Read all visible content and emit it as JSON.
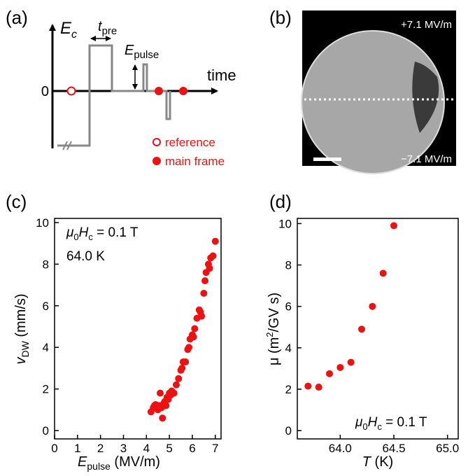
{
  "panel_a": {
    "panel": "(a)",
    "y_axis": [
      "E",
      "c"
    ],
    "t_pre": [
      "t",
      "pre"
    ],
    "e_pulse": [
      "E",
      "pulse"
    ],
    "time": "time",
    "zero": "0",
    "legend": [
      "reference",
      "main frame"
    ]
  },
  "panel_b": {
    "panel": "(b)",
    "top_field": "+7.1 MV/m",
    "bottom_field": "−7.1 MV/m"
  },
  "chart_data": [
    {
      "type": "scatter",
      "panel": "(c)",
      "xlabel": [
        "E",
        "pulse",
        " (MV/m)"
      ],
      "ylabel": [
        "v",
        "DW",
        " (mm/s)"
      ],
      "annotation": [
        "μ",
        "0",
        "H",
        "c",
        " = 0.1 T"
      ],
      "annotation2": "64.0 K",
      "color": "#ee1111",
      "xlim": [
        0,
        7.25
      ],
      "ylim": [
        -0.4,
        10.2
      ],
      "xticks": [
        0,
        1,
        2,
        3,
        4,
        5,
        6,
        7
      ],
      "yticks": [
        0,
        2,
        4,
        6,
        8,
        10
      ],
      "x": [
        4.2,
        4.3,
        4.35,
        4.4,
        4.5,
        4.55,
        4.6,
        4.65,
        4.7,
        4.75,
        4.8,
        4.85,
        4.9,
        4.95,
        5.0,
        5.05,
        5.1,
        5.2,
        5.3,
        5.4,
        5.5,
        5.55,
        5.6,
        5.7,
        5.8,
        5.85,
        5.9,
        6.0,
        6.05,
        6.1,
        6.2,
        6.3,
        6.35,
        6.4,
        6.5,
        6.55,
        6.6,
        6.7,
        6.75,
        6.8,
        6.9,
        7.0
      ],
      "values": [
        0.9,
        1.1,
        1.2,
        1.25,
        1.0,
        1.2,
        1.8,
        1.1,
        0.6,
        1.3,
        1.4,
        1.2,
        1.6,
        1.5,
        1.8,
        1.7,
        1.9,
        1.8,
        2.2,
        2.5,
        2.9,
        3.0,
        3.3,
        3.3,
        3.9,
        4.0,
        4.4,
        4.6,
        4.5,
        4.9,
        5.4,
        5.8,
        5.7,
        5.5,
        6.6,
        7.2,
        7.6,
        8.0,
        7.8,
        8.3,
        8.4,
        9.1
      ]
    },
    {
      "type": "scatter",
      "panel": "(d)",
      "xlabel": [
        "T",
        " (K)"
      ],
      "ylabel": [
        "μ (m",
        "2",
        "/GV s)"
      ],
      "annotation": [
        "μ",
        "0",
        "H",
        "c",
        " = 0.1 T"
      ],
      "color": "#ee1111",
      "xlim": [
        63.6,
        65.1
      ],
      "ylim": [
        -0.4,
        10.25
      ],
      "xticks": [
        {
          "value": 64,
          "label": "64.0"
        },
        64.5,
        {
          "value": 65,
          "label": "65.0"
        }
      ],
      "yticks": [
        0,
        2,
        4,
        6,
        8,
        10
      ],
      "x": [
        63.7,
        63.8,
        63.9,
        64.0,
        64.1,
        64.2,
        64.3,
        64.4,
        64.5
      ],
      "values": [
        2.15,
        2.1,
        2.75,
        3.05,
        3.3,
        4.9,
        6.0,
        7.6,
        9.9
      ]
    }
  ]
}
